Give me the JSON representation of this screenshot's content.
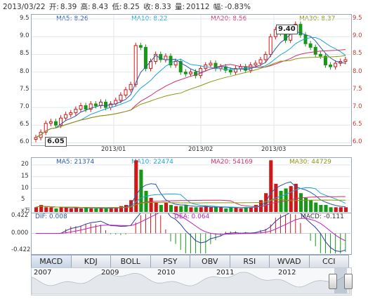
{
  "header": {
    "date": "2013/03/22",
    "open_label": "开:",
    "open": "8.39",
    "high_label": "高:",
    "high": "8.43",
    "low_label": "低:",
    "low": "8.25",
    "close_label": "收:",
    "close": "8.33",
    "vol_label": "量:",
    "vol": "20112",
    "chg_label": "幅:",
    "chg": "-0.83%"
  },
  "price_panel": {
    "ma5": "MA5: 8.26",
    "ma10": "MA10: 8.22",
    "ma20": "MA20: 8.56",
    "ma30": "MA30: 8.37",
    "yticks": [
      "9.5",
      "9.0",
      "8.5",
      "8.0",
      "7.5",
      "7.0",
      "6.5",
      "6.0"
    ],
    "xticks": [
      "2013/01",
      "2013/02",
      "2013/03"
    ],
    "high_marker": "9.40",
    "low_marker": "6.05"
  },
  "volume_panel": {
    "ma5": "MA5: 21374",
    "ma10": "MA10: 22474",
    "ma20": "MA20: 54169",
    "ma30": "MA30: 44729",
    "yticks": [
      "20",
      "15",
      "10",
      "5"
    ],
    "unit": "x万"
  },
  "macd_panel": {
    "dif": "DIF: 0.008",
    "dea": "DEA: 0.064",
    "macd": "MACD: -0.111",
    "yticks": [
      "0.422",
      "0.000",
      "-0.422"
    ]
  },
  "tabs": [
    "MACD",
    "KDJ",
    "BOLL",
    "PSY",
    "OBV",
    "RSI",
    "WVAD",
    "CCI"
  ],
  "timeline_years": [
    "2007",
    "2009",
    "2010",
    "2011",
    "2012"
  ],
  "colors": {
    "ma5": "#2a5aa8",
    "ma10": "#1aa8d8",
    "ma20": "#d0306a",
    "ma30": "#8a9a10",
    "up": "#d01818",
    "down": "#189818"
  }
}
